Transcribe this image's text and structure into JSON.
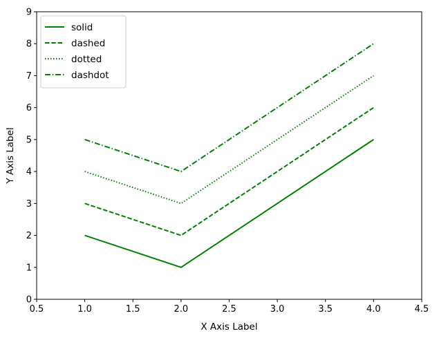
{
  "chart_data": {
    "type": "line",
    "title": "",
    "xlabel": "X Axis Label",
    "ylabel": "Y Axis Label",
    "xlim": [
      0.5,
      4.5
    ],
    "ylim": [
      0,
      9
    ],
    "xticks": [
      "0.5",
      "1.0",
      "1.5",
      "2.0",
      "2.5",
      "3.0",
      "3.5",
      "4.0",
      "4.5"
    ],
    "yticks": [
      "0",
      "1",
      "2",
      "3",
      "4",
      "5",
      "6",
      "7",
      "8",
      "9"
    ],
    "grid": false,
    "legend_position": "top-left",
    "x": [
      1.0,
      2.0,
      4.0
    ],
    "series": [
      {
        "name": "solid",
        "values": [
          2,
          1,
          5
        ],
        "color": "#008000",
        "linestyle": "solid"
      },
      {
        "name": "dashed",
        "values": [
          3,
          2,
          6
        ],
        "color": "#008000",
        "linestyle": "dashed"
      },
      {
        "name": "dotted",
        "values": [
          4,
          3,
          7
        ],
        "color": "#008000",
        "linestyle": "dotted"
      },
      {
        "name": "dashdot",
        "values": [
          5,
          4,
          8
        ],
        "color": "#008000",
        "linestyle": "dashdot"
      }
    ]
  }
}
